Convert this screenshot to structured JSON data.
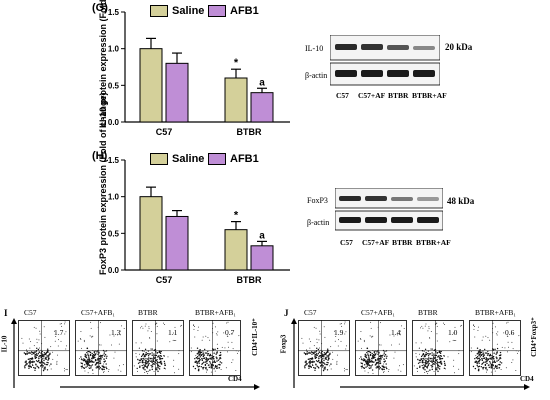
{
  "colors": {
    "saline": "#d4d09a",
    "afb1": "#bf8ed6"
  },
  "chart_data": [
    {
      "type": "bar",
      "panel": "(G)",
      "ylabel": "IL-10 protein expression (Fold of change)",
      "categories": [
        "C57",
        "BTBR"
      ],
      "series": [
        {
          "name": "Saline",
          "values": [
            1.0,
            0.6
          ],
          "errors": [
            0.14,
            0.12
          ]
        },
        {
          "name": "AFB1",
          "values": [
            0.8,
            0.4
          ],
          "errors": [
            0.14,
            0.06
          ]
        }
      ],
      "yticks": [
        "0.0",
        "0.5",
        "1.0",
        "1.5"
      ],
      "ylim": [
        0,
        1.5
      ],
      "annotations": [
        "*",
        "a"
      ]
    },
    {
      "type": "bar",
      "panel": "(H)",
      "ylabel": "FoxP3 protein expression (Fold of change)",
      "categories": [
        "C57",
        "BTBR"
      ],
      "series": [
        {
          "name": "Saline",
          "values": [
            1.0,
            0.55
          ],
          "errors": [
            0.13,
            0.11
          ]
        },
        {
          "name": "AFB1",
          "values": [
            0.73,
            0.33
          ],
          "errors": [
            0.08,
            0.06
          ]
        }
      ],
      "yticks": [
        "0.0",
        "0.5",
        "1.0",
        "1.5"
      ],
      "ylim": [
        0,
        1.5
      ],
      "annotations": [
        "*",
        "a"
      ]
    }
  ],
  "blot_g": {
    "label1": "IL-10",
    "label2": "β-actin",
    "kda": "20 kDa",
    "lanes": [
      "C57",
      "C57+AF",
      "BTBR",
      "BTBR+AF"
    ]
  },
  "blot_h": {
    "label1": "FoxP3",
    "label2": "β-actin",
    "kda": "48 kDa",
    "lanes": [
      "C57",
      "C57+AF",
      "BTBR",
      "BTBR+AF"
    ]
  },
  "flow_i": {
    "tag": "I",
    "yaxis": "IL-10",
    "xaxis": "CD4",
    "right_label": "CD4⁺IL-10⁺",
    "plots": [
      {
        "title": "C57",
        "pct": "1.7"
      },
      {
        "title": "C57+AFB₁",
        "pct": "1.3"
      },
      {
        "title": "BTBR",
        "pct": "1.1"
      },
      {
        "title": "BTBR+AFB₁",
        "pct": "0.7"
      }
    ]
  },
  "flow_j": {
    "tag": "J",
    "yaxis": "Foxp3",
    "xaxis": "CD4",
    "right_label": "CD4⁺Foxp3⁺",
    "plots": [
      {
        "title": "C57",
        "pct": "1.9"
      },
      {
        "title": "C57+AFB₁",
        "pct": "1.4"
      },
      {
        "title": "BTBR",
        "pct": "1.0"
      },
      {
        "title": "BTBR+AFB₁",
        "pct": "0.6"
      }
    ]
  }
}
